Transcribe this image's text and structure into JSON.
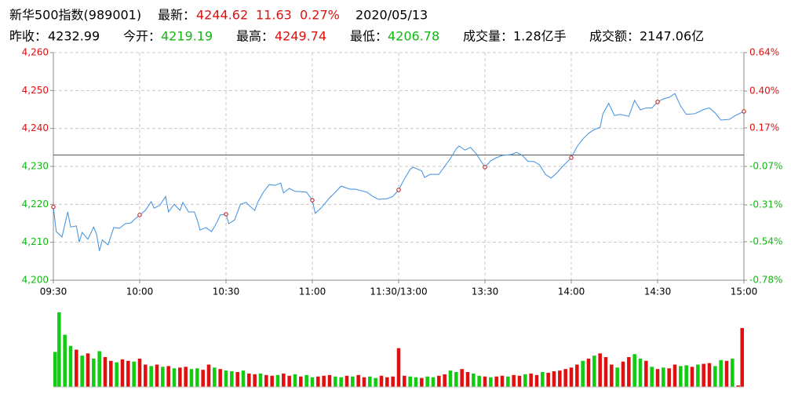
{
  "header": {
    "title": "新华500指数(989001)",
    "row1": [
      {
        "text": "最新：",
        "color": "#000000"
      },
      {
        "text": 4244.62,
        "color": "#e01010"
      },
      {
        "text": 11.63,
        "color": "#e01010"
      },
      {
        "text": "0.27%",
        "color": "#e01010"
      },
      {
        "text": "2020/05/13",
        "color": "#000000"
      }
    ],
    "row2": [
      {
        "text": "昨收：",
        "color": "#000000"
      },
      {
        "text": 4232.99,
        "color": "#000000"
      },
      {
        "text": "今开：",
        "color": "#000000"
      },
      {
        "text": 4219.19,
        "color": "#11b811"
      },
      {
        "text": "最高：",
        "color": "#000000"
      },
      {
        "text": 4249.74,
        "color": "#e01010"
      },
      {
        "text": "最低：",
        "color": "#000000"
      },
      {
        "text": 4206.78,
        "color": "#11b811"
      },
      {
        "text": "成交量：",
        "color": "#000000"
      },
      {
        "text": "1.28亿手",
        "color": "#000000"
      },
      {
        "text": "成交额：",
        "color": "#000000"
      },
      {
        "text": "2147.06亿",
        "color": "#000000"
      }
    ]
  },
  "chart_data": [
    {
      "type": "line",
      "xlim": [
        0,
        240
      ],
      "xticks": [
        {
          "value": 0,
          "label": "09:30"
        },
        {
          "value": 30,
          "label": "10:00"
        },
        {
          "value": 60,
          "label": "10:30"
        },
        {
          "value": 90,
          "label": "11:00"
        },
        {
          "value": 120,
          "label": "11:30/13:00"
        },
        {
          "value": 150,
          "label": "13:30"
        },
        {
          "value": 180,
          "label": "14:00"
        },
        {
          "value": 210,
          "label": "14:30"
        },
        {
          "value": 240,
          "label": "15:00"
        }
      ],
      "ylim": [
        4200,
        4260
      ],
      "yticks": [
        {
          "value": 4200,
          "label": "4,200"
        },
        {
          "value": 4210,
          "label": "4,210"
        },
        {
          "value": 4220,
          "label": "4,220"
        },
        {
          "value": 4230,
          "label": "4,230"
        },
        {
          "value": 4240,
          "label": "4,240"
        },
        {
          "value": 4250,
          "label": "4,250"
        },
        {
          "value": 4260,
          "label": "4,260"
        }
      ],
      "y2lim": [
        -0.78,
        0.64
      ],
      "y2ticks": [
        {
          "value": -0.78,
          "label": "-0.78%"
        },
        {
          "value": -0.54,
          "label": "-0.54%"
        },
        {
          "value": -0.31,
          "label": "-0.31%"
        },
        {
          "value": -0.07,
          "label": "-0.07%"
        },
        {
          "value": 0.17,
          "label": "0.17%"
        },
        {
          "value": 0.4,
          "label": "0.40%"
        },
        {
          "value": 0.64,
          "label": "0.64%"
        }
      ],
      "grid": true,
      "up_color": "#e01010",
      "down_color": "#11b811",
      "reference_color": "#555555",
      "series": [
        {
          "color": "#3d8fe0",
          "markers": true,
          "marker_color": "#c01010",
          "x": [
            0,
            1,
            3,
            5,
            6,
            8,
            9,
            10,
            12,
            14,
            15,
            16,
            17,
            19,
            21,
            23,
            25,
            27,
            28,
            30,
            32,
            34,
            35,
            37,
            39,
            40,
            42,
            44,
            45,
            47,
            49,
            50,
            51,
            53,
            55,
            57,
            58,
            60,
            61,
            63,
            65,
            67,
            68,
            70,
            71,
            73,
            75,
            77,
            79,
            80,
            82,
            84,
            85,
            88,
            90,
            91,
            93,
            96,
            98,
            100,
            103,
            105,
            107,
            109,
            111,
            113,
            116,
            118,
            120,
            122,
            124,
            125,
            128,
            129,
            131,
            134,
            136,
            138,
            140,
            141,
            143,
            145,
            147,
            150,
            152,
            154,
            156,
            159,
            161,
            163,
            165,
            167,
            169,
            171,
            173,
            175,
            177,
            180,
            182,
            184,
            186,
            188,
            190,
            191,
            193,
            195,
            197,
            200,
            202,
            204,
            206,
            208,
            210,
            212,
            214,
            216,
            218,
            220,
            223,
            226,
            228,
            230,
            232,
            235,
            237,
            240
          ],
          "values": [
            4219.3,
            4212.8,
            4211.4,
            4218,
            4214,
            4214.3,
            4210.1,
            4212.6,
            4210.8,
            4214,
            4212.2,
            4207.7,
            4210.6,
            4209.3,
            4213.9,
            4213.7,
            4214.9,
            4215.1,
            4215.9,
            4217.2,
            4218.4,
            4220.7,
            4219,
            4219.7,
            4222.1,
            4218,
            4220,
            4218.4,
            4220.5,
            4218,
            4218,
            4215.9,
            4213.2,
            4213.9,
            4212.8,
            4215.5,
            4217.2,
            4217.4,
            4214.9,
            4215.9,
            4220,
            4220.5,
            4219.7,
            4218.4,
            4220.5,
            4223.2,
            4225.2,
            4225,
            4225.6,
            4223,
            4224.2,
            4223.4,
            4223.4,
            4223.2,
            4221.1,
            4217.6,
            4219,
            4221.7,
            4223.2,
            4224.8,
            4224,
            4224,
            4223.6,
            4223.2,
            4222.1,
            4221.3,
            4221.5,
            4222.1,
            4223.8,
            4226.7,
            4229.2,
            4229.8,
            4228.8,
            4227.1,
            4227.9,
            4227.9,
            4230,
            4232.1,
            4234.6,
            4235.4,
            4234.3,
            4235,
            4233.3,
            4229.8,
            4231.5,
            4232.3,
            4232.9,
            4233.1,
            4233.7,
            4232.9,
            4231.3,
            4231.3,
            4230.4,
            4227.9,
            4226.9,
            4228.3,
            4230,
            4232.3,
            4235.2,
            4237.2,
            4238.7,
            4239.7,
            4240.3,
            4243.9,
            4246.6,
            4243.4,
            4243.7,
            4243.2,
            4247.4,
            4244.9,
            4245.4,
            4245.4,
            4247,
            4247.8,
            4248.2,
            4249.2,
            4245.9,
            4243.7,
            4243.9,
            4245,
            4245.4,
            4244.1,
            4242.2,
            4242.4,
            4243.4,
            4244.5
          ]
        }
      ]
    },
    {
      "type": "bar",
      "ylim": [
        0,
        100
      ],
      "values": [
        47,
        100,
        70,
        55,
        50,
        42,
        45,
        38,
        48,
        40,
        35,
        33,
        37,
        35,
        34,
        38,
        30,
        28,
        30,
        27,
        28,
        25,
        26,
        27,
        24,
        25,
        23,
        30,
        26,
        24,
        22,
        21,
        20,
        22,
        18,
        17,
        18,
        16,
        15,
        16,
        18,
        15,
        17,
        14,
        16,
        13,
        14,
        15,
        16,
        14,
        13,
        15,
        14,
        16,
        13,
        14,
        12,
        15,
        13,
        14,
        52,
        15,
        14,
        13,
        12,
        14,
        13,
        15,
        17,
        22,
        20,
        24,
        20,
        18,
        15,
        14,
        13,
        14,
        15,
        14,
        16,
        15,
        17,
        18,
        16,
        20,
        19,
        21,
        22,
        24,
        26,
        30,
        35,
        38,
        42,
        45,
        40,
        30,
        26,
        34,
        40,
        44,
        38,
        35,
        27,
        24,
        26,
        25,
        30,
        28,
        29,
        27,
        30,
        31,
        32,
        28,
        36,
        35,
        38,
        2,
        79
      ],
      "colors": [
        "#11cc11",
        "#11cc11",
        "#11cc11",
        "#11cc11",
        "#e01010",
        "#11cc11",
        "#e01010",
        "#11cc11",
        "#11cc11",
        "#e01010",
        "#e01010",
        "#11cc11",
        "#e01010",
        "#e01010",
        "#11cc11",
        "#e01010",
        "#e01010",
        "#11cc11",
        "#e01010",
        "#11cc11",
        "#e01010",
        "#11cc11",
        "#e01010",
        "#e01010",
        "#11cc11",
        "#11cc11",
        "#e01010",
        "#e01010",
        "#11cc11",
        "#e01010",
        "#11cc11",
        "#11cc11",
        "#e01010",
        "#11cc11",
        "#e01010",
        "#e01010",
        "#11cc11",
        "#e01010",
        "#e01010",
        "#11cc11",
        "#e01010",
        "#e01010",
        "#11cc11",
        "#e01010",
        "#11cc11",
        "#11cc11",
        "#e01010",
        "#e01010",
        "#e01010",
        "#11cc11",
        "#11cc11",
        "#e01010",
        "#11cc11",
        "#e01010",
        "#e01010",
        "#11cc11",
        "#11cc11",
        "#e01010",
        "#e01010",
        "#e01010",
        "#e01010",
        "#e01010",
        "#11cc11",
        "#11cc11",
        "#e01010",
        "#11cc11",
        "#11cc11",
        "#e01010",
        "#e01010",
        "#11cc11",
        "#11cc11",
        "#e01010",
        "#e01010",
        "#11cc11",
        "#11cc11",
        "#e01010",
        "#11cc11",
        "#e01010",
        "#e01010",
        "#11cc11",
        "#e01010",
        "#e01010",
        "#11cc11",
        "#e01010",
        "#e01010",
        "#11cc11",
        "#e01010",
        "#e01010",
        "#e01010",
        "#e01010",
        "#e01010",
        "#e01010",
        "#11cc11",
        "#e01010",
        "#11cc11",
        "#e01010",
        "#e01010",
        "#e01010",
        "#11cc11",
        "#e01010",
        "#e01010",
        "#11cc11",
        "#11cc11",
        "#e01010",
        "#11cc11",
        "#e01010",
        "#11cc11",
        "#e01010",
        "#e01010",
        "#11cc11",
        "#11cc11",
        "#e01010",
        "#11cc11",
        "#e01010",
        "#e01010",
        "#11cc11",
        "#11cc11",
        "#e01010",
        "#11cc11",
        "#e01010",
        "#e01010"
      ]
    }
  ]
}
